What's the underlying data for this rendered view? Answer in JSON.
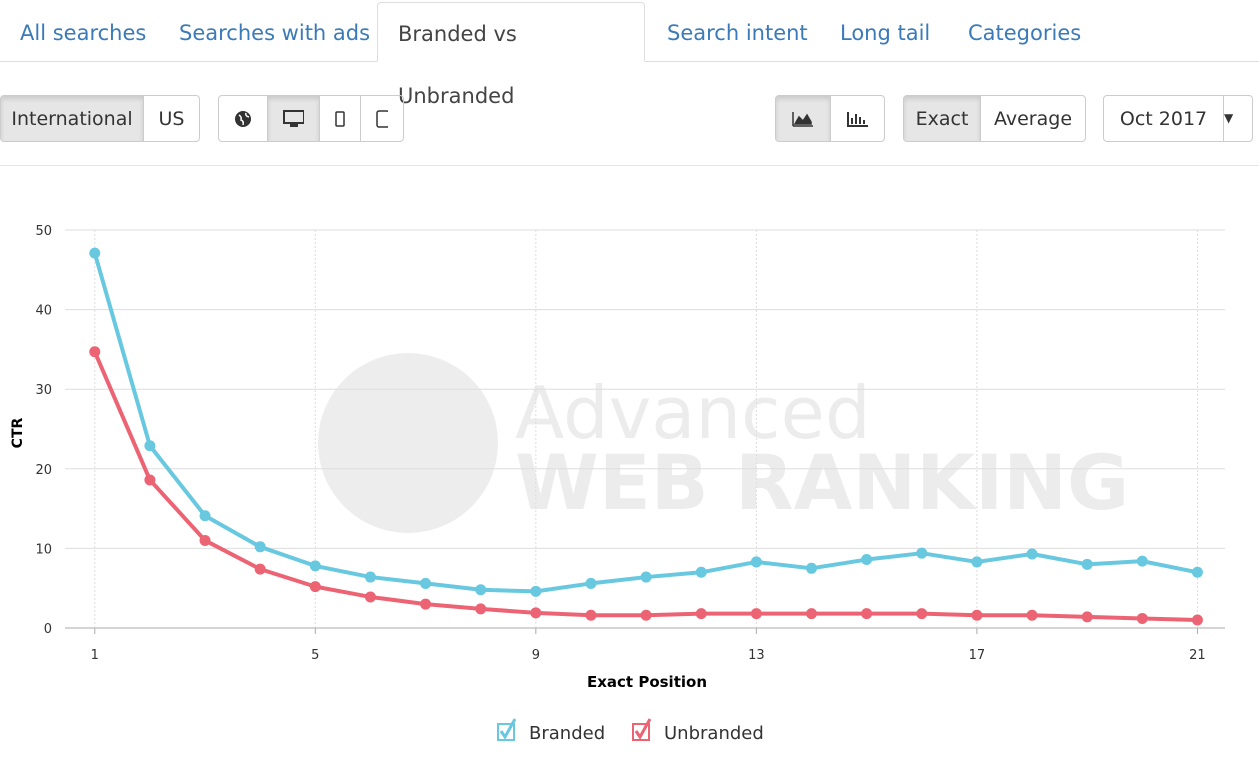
{
  "tabs": [
    "All searches",
    "Searches with ads",
    "Branded vs Unbranded",
    "Search intent",
    "Long tail",
    "Categories"
  ],
  "toolbar": {
    "region": [
      "International",
      "US"
    ],
    "mode": [
      "Exact",
      "Average"
    ],
    "date": "Oct 2017"
  },
  "watermark": [
    "Advanced",
    "WEB RANKING"
  ],
  "chart_data": {
    "type": "line",
    "x_label": "Exact Position",
    "y_label": "CTR",
    "x": [
      1,
      2,
      3,
      4,
      5,
      6,
      7,
      8,
      9,
      10,
      11,
      12,
      13,
      14,
      15,
      16,
      17,
      18,
      19,
      20,
      21
    ],
    "series": [
      {
        "name": "Branded",
        "color": "#68c8e0",
        "values": [
          47.1,
          22.9,
          14.1,
          10.2,
          7.8,
          6.4,
          5.6,
          4.8,
          4.6,
          5.6,
          6.4,
          7.0,
          8.3,
          7.5,
          8.6,
          9.4,
          8.3,
          9.3,
          8.0,
          8.4,
          7.0
        ]
      },
      {
        "name": "Unbranded",
        "color": "#ec6474",
        "values": [
          34.7,
          18.6,
          11.0,
          7.4,
          5.2,
          3.9,
          3.0,
          2.4,
          1.9,
          1.6,
          1.6,
          1.8,
          1.8,
          1.8,
          1.8,
          1.8,
          1.6,
          1.6,
          1.4,
          1.2,
          1.0
        ]
      }
    ],
    "xlim": [
      0.46,
      21.5
    ],
    "xticks": [
      1,
      5,
      9,
      13,
      17,
      21
    ],
    "ylim": [
      0,
      50
    ],
    "yticks": [
      0,
      10,
      20,
      30,
      40,
      50
    ],
    "grid": true
  }
}
